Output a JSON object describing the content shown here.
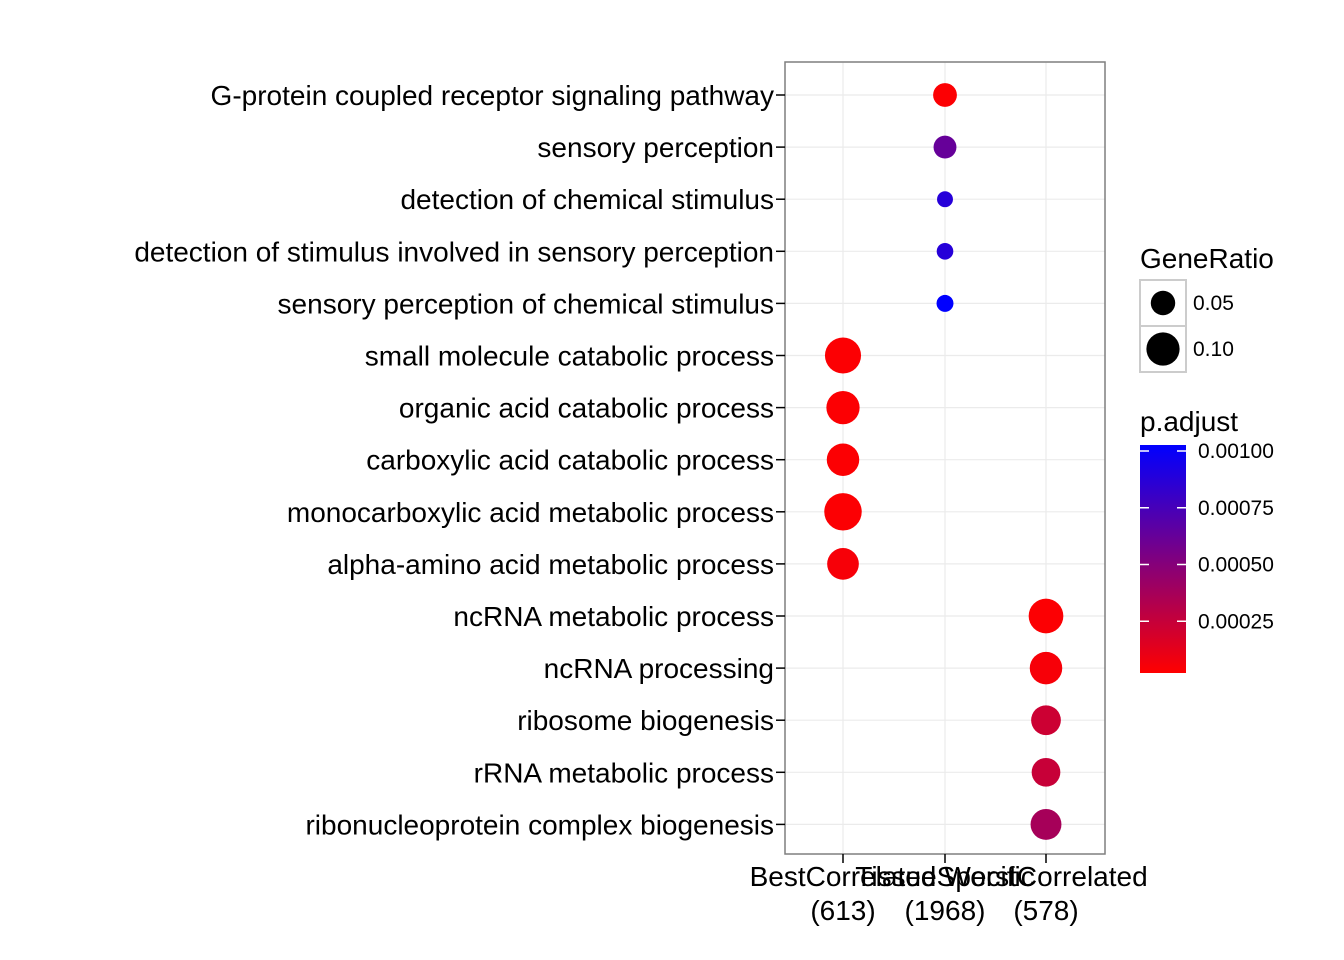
{
  "chart_data": {
    "type": "scatter",
    "title": "",
    "xlabel": "",
    "ylabel": "",
    "grid": true,
    "legend_placement": "right",
    "x_categories": [
      {
        "line1": "BestCorrelated",
        "line2": "(613)"
      },
      {
        "line1": "TissueSpecific",
        "line2": "(1968)"
      },
      {
        "line1": "WorstCorrelated",
        "line2": "(578)"
      }
    ],
    "y_categories": [
      "G-protein coupled receptor signaling pathway",
      "sensory perception",
      "detection of chemical stimulus",
      "detection of stimulus involved in sensory perception",
      "sensory perception of chemical stimulus",
      "small molecule catabolic process",
      "organic acid catabolic process",
      "carboxylic acid catabolic process",
      "monocarboxylic acid metabolic process",
      "alpha-amino acid metabolic process",
      "ncRNA metabolic process",
      "ncRNA processing",
      "ribosome biogenesis",
      "rRNA metabolic process",
      "ribonucleoprotein complex biogenesis"
    ],
    "points": [
      {
        "x": 1,
        "y": 0,
        "gene_ratio": 0.047,
        "p_adjust": 1e-05
      },
      {
        "x": 1,
        "y": 1,
        "gene_ratio": 0.043,
        "p_adjust": 0.0006
      },
      {
        "x": 1,
        "y": 2,
        "gene_ratio": 0.018,
        "p_adjust": 0.00085
      },
      {
        "x": 1,
        "y": 3,
        "gene_ratio": 0.02,
        "p_adjust": 0.00085
      },
      {
        "x": 1,
        "y": 4,
        "gene_ratio": 0.021,
        "p_adjust": 0.001
      },
      {
        "x": 0,
        "y": 5,
        "gene_ratio": 0.12,
        "p_adjust": 1e-05
      },
      {
        "x": 0,
        "y": 6,
        "gene_ratio": 0.1,
        "p_adjust": 1e-05
      },
      {
        "x": 0,
        "y": 7,
        "gene_ratio": 0.095,
        "p_adjust": 1e-05
      },
      {
        "x": 0,
        "y": 8,
        "gene_ratio": 0.13,
        "p_adjust": 1e-05
      },
      {
        "x": 0,
        "y": 9,
        "gene_ratio": 0.09,
        "p_adjust": 3e-05
      },
      {
        "x": 2,
        "y": 10,
        "gene_ratio": 0.11,
        "p_adjust": 1e-05
      },
      {
        "x": 2,
        "y": 11,
        "gene_ratio": 0.095,
        "p_adjust": 3e-05
      },
      {
        "x": 2,
        "y": 12,
        "gene_ratio": 0.078,
        "p_adjust": 0.0002
      },
      {
        "x": 2,
        "y": 13,
        "gene_ratio": 0.072,
        "p_adjust": 0.00022
      },
      {
        "x": 2,
        "y": 14,
        "gene_ratio": 0.085,
        "p_adjust": 0.00035
      }
    ],
    "size_legend": {
      "title": "GeneRatio",
      "breaks": [
        {
          "value": 0.05,
          "label": "0.05"
        },
        {
          "value": 0.1,
          "label": "0.10"
        }
      ]
    },
    "color_legend": {
      "title": "p.adjust",
      "low_color": "#ff0000",
      "high_color": "#0000ff",
      "min": 0.0,
      "max": 0.001,
      "breaks": [
        {
          "value": 0.001,
          "label": "0.00100"
        },
        {
          "value": 0.00075,
          "label": "0.00075"
        },
        {
          "value": 0.0005,
          "label": "0.00050"
        },
        {
          "value": 0.00025,
          "label": "0.00025"
        }
      ]
    }
  }
}
